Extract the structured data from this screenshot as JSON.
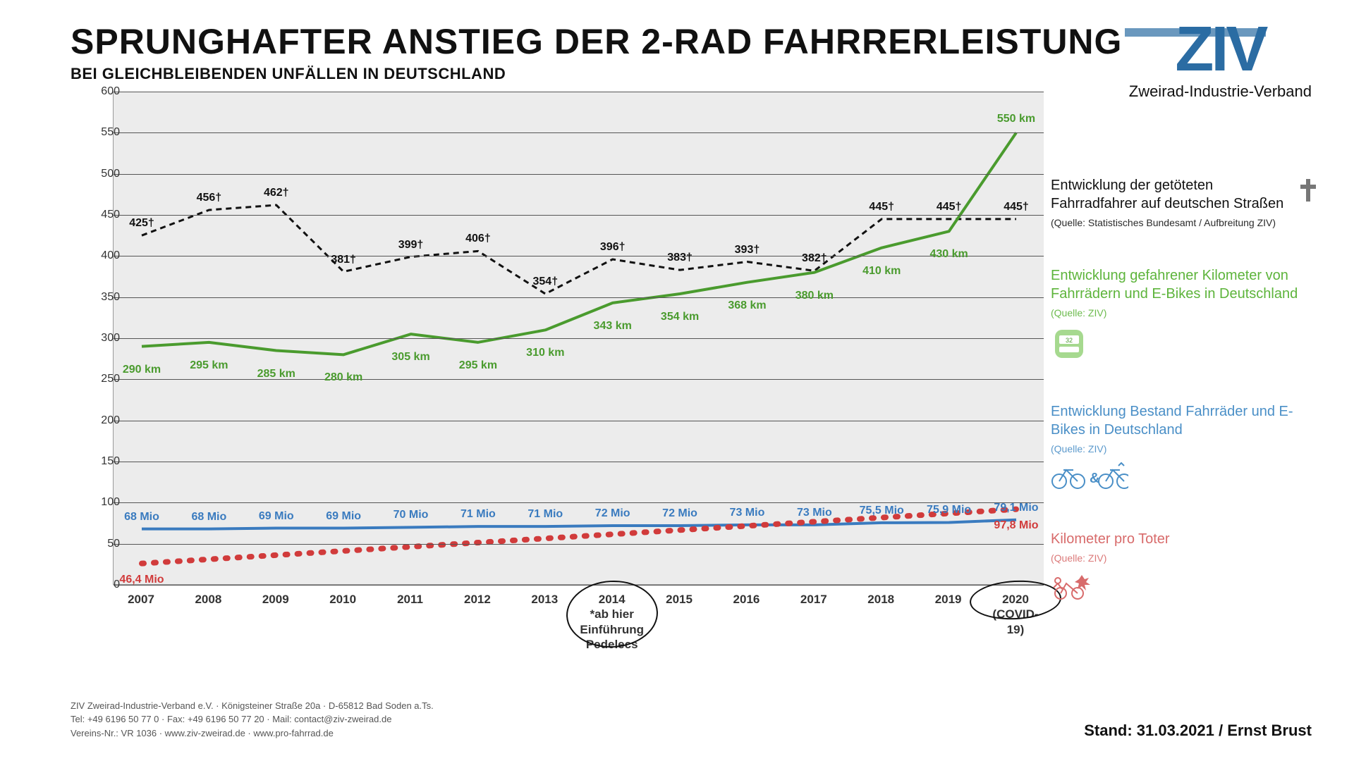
{
  "title": "SPRUNGHAFTER ANSTIEG DER 2-RAD FAHRRERLEISTUNG",
  "subtitle": "BEI GLEICHBLEIBENDEN UNFÄLLEN IN DEUTSCHLAND",
  "logo": {
    "text": "ZIV",
    "sub": "Zweirad-Industrie-Verband",
    "color": "#2b6ca3"
  },
  "chart": {
    "type": "multi-line",
    "background": "#ececec",
    "ylim": [
      0,
      600
    ],
    "ytick_step": 50,
    "years": [
      "2007",
      "2008",
      "2009",
      "2010",
      "2011",
      "2012",
      "2013",
      "2014",
      "2015",
      "2016",
      "2017",
      "2018",
      "2019",
      "2020"
    ],
    "x_notes": {
      "2014": "*ab hier\nEinführung\nPedelecs",
      "2020": "(COVID-19)"
    },
    "ellipses_on": [
      "2014",
      "2020"
    ],
    "series": {
      "fatalities": {
        "color": "#111111",
        "dash": "8 6",
        "width": 3,
        "values": [
          425,
          456,
          462,
          381,
          399,
          406,
          354,
          396,
          383,
          393,
          382,
          445,
          445,
          445
        ],
        "labels": [
          "425†",
          "456†",
          "462†",
          "381†",
          "399†",
          "406†",
          "354†",
          "396†",
          "383†",
          "393†",
          "382†",
          "445†",
          "445†",
          "445†"
        ],
        "label_offset": -26
      },
      "kilometers": {
        "color": "#4a9b2e",
        "dash": "",
        "width": 4,
        "values": [
          290,
          295,
          285,
          280,
          305,
          295,
          310,
          343,
          354,
          368,
          380,
          410,
          430,
          550
        ],
        "labels": [
          "290 km",
          "295 km",
          "285 km",
          "280 km",
          "305 km",
          "295 km",
          "310 km",
          "343 km",
          "354 km",
          "368 km",
          "380 km",
          "410 km",
          "430 km",
          "550 km"
        ],
        "label_offset": 24
      },
      "stock": {
        "color": "#3a7bbf",
        "dash": "",
        "width": 4,
        "values": [
          68,
          68,
          69,
          69,
          70,
          71,
          71,
          72,
          72,
          73,
          73,
          75.5,
          75.9,
          79.1
        ],
        "labels": [
          "68 Mio",
          "68 Mio",
          "69 Mio",
          "69 Mio",
          "70 Mio",
          "71 Mio",
          "71 Mio",
          "72 Mio",
          "72 Mio",
          "73 Mio",
          "73 Mio",
          "75,5 Mio",
          "75,9 Mio",
          "79,1 Mio"
        ],
        "label_offset": -26
      },
      "km_per_death": {
        "color": "#d13b3b",
        "dash": "dot",
        "width": 8,
        "values": [
          26,
          92
        ],
        "start_label": "46,4 Mio",
        "end_label": "97,8 Mio"
      }
    }
  },
  "legend": [
    {
      "cls": "black",
      "text": "Entwicklung der getöteten Fahrradfahrer auf deutschen Straßen",
      "src": "(Quelle: Statistisches Bundesamt / Aufbreitung ZIV)",
      "icon": "cross"
    },
    {
      "cls": "green",
      "text": "Entwicklung gefahrener Kilometer von Fahrrädern und E-Bikes in Deutschland",
      "src": "(Quelle: ZIV)",
      "icon": "odometer"
    },
    {
      "cls": "blue",
      "text": "Entwicklung Bestand Fahrräder und E-Bikes in Deutschland",
      "src": "(Quelle: ZIV)",
      "icon": "bikes"
    },
    {
      "cls": "red",
      "text": "Kilometer pro Toter",
      "src": "(Quelle: ZIV)",
      "icon": "crash"
    }
  ],
  "footer": [
    "ZIV Zweirad-Industrie-Verband e.V. · Königsteiner Straße 20a · D-65812 Bad Soden a.Ts.",
    "Tel: +49 6196 50 77 0 · Fax: +49 6196 50 77 20 · Mail: contact@ziv-zweirad.de",
    "Vereins-Nr.: VR 1036 · www.ziv-zweirad.de · www.pro-fahrrad.de"
  ],
  "stand": "Stand: 31.03.2021 / Ernst Brust",
  "colors": {
    "fatalities": "#111111",
    "kilometers": "#4a9b2e",
    "stock": "#3a7bbf",
    "km_per_death": "#d13b3b"
  }
}
